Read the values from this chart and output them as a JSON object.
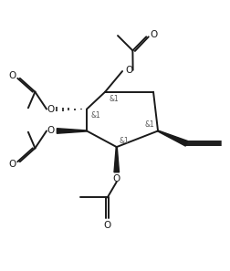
{
  "background_color": "#ffffff",
  "line_color": "#1a1a1a",
  "line_width": 1.4,
  "font_size": 7.5,
  "stereo_font_size": 5.5,
  "figsize": [
    2.53,
    2.97
  ],
  "dpi": 100,
  "xlim": [
    0,
    10
  ],
  "ylim": [
    0,
    11.7
  ]
}
